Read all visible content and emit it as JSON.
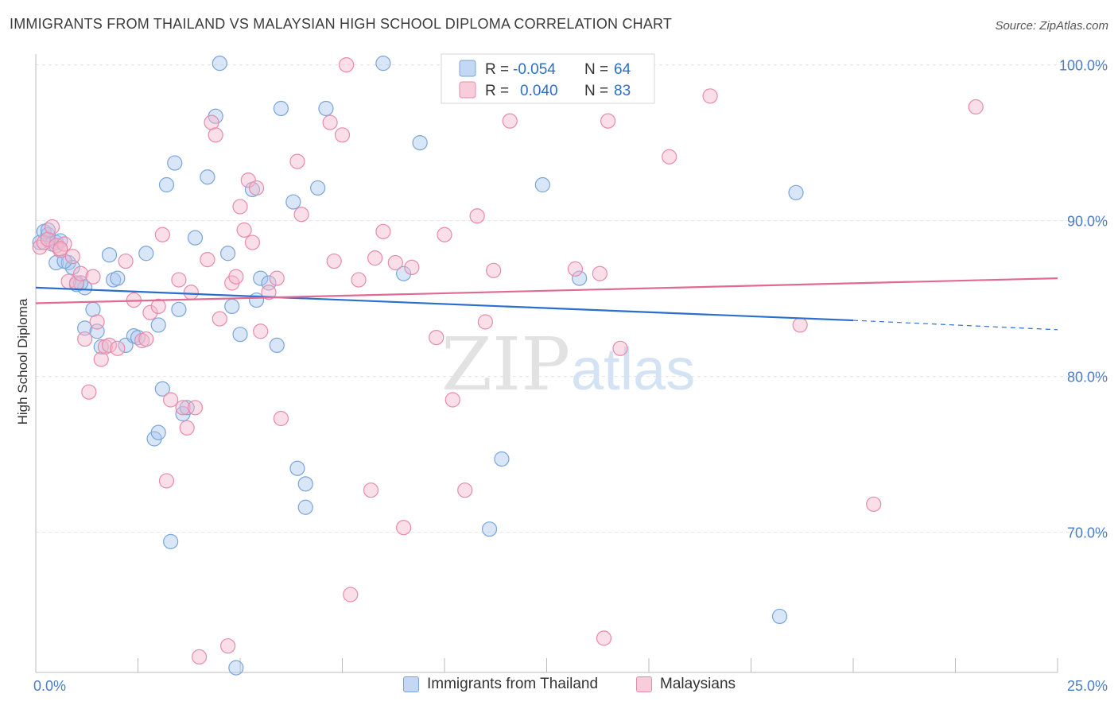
{
  "header": {
    "title": "IMMIGRANTS FROM THAILAND VS MALAYSIAN HIGH SCHOOL DIPLOMA CORRELATION CHART",
    "source": "Source: ZipAtlas.com"
  },
  "watermark": {
    "part1": "ZIP",
    "part2": "atlas"
  },
  "colors": {
    "blue_fill": "#a8c8f0",
    "blue_stroke": "#7aa5d9",
    "blue_line": "#2a6fcc",
    "pink_fill": "#f5b8cc",
    "pink_stroke": "#e88aab",
    "pink_line": "#e06a94",
    "axis_label": "#4a7cc7",
    "grid": "#e2e2e2"
  },
  "stats_legend": [
    {
      "r_label": "R =",
      "r_value": "-0.054",
      "n_label": "N =",
      "n_value": "64"
    },
    {
      "r_label": "R =",
      "r_value": "0.040",
      "n_label": "N =",
      "n_value": "83"
    }
  ],
  "legend": [
    {
      "label": "Immigrants from Thailand"
    },
    {
      "label": "Malaysians"
    }
  ],
  "chart_data": {
    "type": "scatter",
    "ylabel": "High School Diploma",
    "xlim": [
      0,
      25
    ],
    "ylim": [
      61.0,
      101.0
    ],
    "x_ticks": [
      "0.0%",
      "25.0%"
    ],
    "y_ticks": [
      {
        "value": 100,
        "label": "100.0%"
      },
      {
        "value": 90,
        "label": "90.0%"
      },
      {
        "value": 80,
        "label": "80.0%"
      },
      {
        "value": 70,
        "label": "70.0%"
      }
    ],
    "series": [
      {
        "name": "Immigrants from Thailand",
        "trend": {
          "x0": 0,
          "y0": 85.7,
          "x1": 20.0,
          "y1": 83.6,
          "dash_to_x": 25,
          "dash_to_y": 83.0
        },
        "points": [
          [
            0.1,
            88.6
          ],
          [
            0.2,
            89.3
          ],
          [
            0.3,
            89.1
          ],
          [
            0.4,
            88.5
          ],
          [
            0.5,
            88.6
          ],
          [
            0.6,
            88.7
          ],
          [
            0.5,
            87.3
          ],
          [
            0.8,
            87.3
          ],
          [
            0.9,
            87.0
          ],
          [
            1.0,
            85.9
          ],
          [
            1.2,
            85.7
          ],
          [
            1.4,
            84.3
          ],
          [
            1.2,
            83.1
          ],
          [
            1.5,
            82.9
          ],
          [
            1.6,
            81.9
          ],
          [
            1.8,
            87.8
          ],
          [
            1.9,
            86.2
          ],
          [
            2.0,
            86.3
          ],
          [
            2.2,
            82.0
          ],
          [
            2.4,
            82.6
          ],
          [
            2.5,
            82.5
          ],
          [
            2.7,
            87.9
          ],
          [
            2.9,
            76.0
          ],
          [
            3.0,
            76.4
          ],
          [
            3.0,
            83.3
          ],
          [
            3.1,
            79.2
          ],
          [
            3.2,
            92.3
          ],
          [
            3.4,
            93.7
          ],
          [
            3.5,
            84.3
          ],
          [
            3.6,
            77.6
          ],
          [
            3.7,
            78.0
          ],
          [
            3.9,
            88.9
          ],
          [
            4.2,
            92.8
          ],
          [
            4.4,
            96.7
          ],
          [
            4.5,
            100.1
          ],
          [
            4.7,
            87.9
          ],
          [
            4.8,
            84.5
          ],
          [
            4.9,
            61.3
          ],
          [
            5.0,
            82.7
          ],
          [
            5.3,
            92.0
          ],
          [
            5.4,
            84.9
          ],
          [
            5.5,
            86.3
          ],
          [
            5.7,
            86.0
          ],
          [
            5.9,
            82.0
          ],
          [
            6.0,
            97.2
          ],
          [
            6.3,
            91.2
          ],
          [
            6.4,
            74.1
          ],
          [
            6.6,
            73.1
          ],
          [
            6.6,
            71.6
          ],
          [
            6.9,
            92.1
          ],
          [
            7.1,
            97.2
          ],
          [
            8.5,
            100.1
          ],
          [
            9.0,
            86.6
          ],
          [
            9.4,
            95.0
          ],
          [
            3.3,
            69.4
          ],
          [
            11.1,
            70.2
          ],
          [
            11.4,
            74.7
          ],
          [
            12.4,
            92.3
          ],
          [
            13.3,
            86.3
          ],
          [
            18.2,
            64.6
          ],
          [
            18.6,
            91.8
          ],
          [
            0.3,
            89.4
          ],
          [
            0.7,
            87.4
          ],
          [
            1.1,
            86.0
          ]
        ]
      },
      {
        "name": "Malaysians",
        "trend": {
          "x0": 0,
          "y0": 84.7,
          "x1": 25,
          "y1": 86.3
        },
        "points": [
          [
            0.1,
            88.3
          ],
          [
            0.2,
            88.6
          ],
          [
            0.3,
            88.8
          ],
          [
            0.4,
            89.6
          ],
          [
            0.5,
            88.4
          ],
          [
            0.6,
            88.1
          ],
          [
            0.7,
            88.5
          ],
          [
            0.8,
            86.1
          ],
          [
            0.9,
            87.7
          ],
          [
            1.0,
            86.0
          ],
          [
            1.1,
            86.6
          ],
          [
            1.2,
            82.4
          ],
          [
            1.3,
            79.0
          ],
          [
            1.4,
            86.4
          ],
          [
            1.5,
            83.5
          ],
          [
            1.6,
            81.1
          ],
          [
            1.7,
            81.9
          ],
          [
            1.8,
            82.0
          ],
          [
            2.0,
            81.8
          ],
          [
            2.2,
            87.4
          ],
          [
            2.4,
            84.9
          ],
          [
            2.6,
            82.3
          ],
          [
            2.7,
            82.4
          ],
          [
            2.8,
            84.1
          ],
          [
            3.0,
            84.5
          ],
          [
            3.1,
            89.1
          ],
          [
            3.2,
            73.3
          ],
          [
            3.3,
            78.5
          ],
          [
            3.5,
            86.2
          ],
          [
            3.6,
            78.0
          ],
          [
            3.7,
            76.7
          ],
          [
            3.8,
            85.4
          ],
          [
            3.9,
            78.0
          ],
          [
            4.0,
            62.0
          ],
          [
            4.2,
            87.5
          ],
          [
            4.3,
            96.3
          ],
          [
            4.4,
            95.5
          ],
          [
            4.5,
            83.7
          ],
          [
            4.7,
            62.7
          ],
          [
            4.8,
            86.0
          ],
          [
            4.9,
            86.4
          ],
          [
            5.0,
            90.9
          ],
          [
            5.1,
            89.4
          ],
          [
            5.2,
            92.6
          ],
          [
            5.3,
            88.6
          ],
          [
            5.4,
            92.1
          ],
          [
            5.5,
            82.9
          ],
          [
            5.7,
            85.4
          ],
          [
            5.9,
            86.3
          ],
          [
            6.0,
            77.3
          ],
          [
            6.4,
            93.8
          ],
          [
            6.5,
            90.4
          ],
          [
            7.2,
            96.3
          ],
          [
            7.3,
            87.4
          ],
          [
            7.5,
            95.5
          ],
          [
            7.6,
            100.0
          ],
          [
            7.7,
            66.0
          ],
          [
            7.9,
            86.2
          ],
          [
            8.2,
            72.7
          ],
          [
            8.3,
            87.6
          ],
          [
            8.5,
            89.3
          ],
          [
            8.8,
            87.3
          ],
          [
            9.0,
            70.3
          ],
          [
            9.2,
            87.0
          ],
          [
            9.8,
            82.5
          ],
          [
            10.0,
            89.1
          ],
          [
            10.2,
            78.5
          ],
          [
            10.5,
            72.7
          ],
          [
            10.8,
            90.3
          ],
          [
            11.0,
            83.5
          ],
          [
            11.2,
            86.8
          ],
          [
            11.6,
            96.4
          ],
          [
            13.2,
            86.9
          ],
          [
            13.8,
            86.6
          ],
          [
            13.9,
            63.2
          ],
          [
            14.0,
            96.4
          ],
          [
            14.3,
            81.8
          ],
          [
            15.5,
            94.1
          ],
          [
            16.5,
            98.0
          ],
          [
            18.7,
            83.3
          ],
          [
            20.5,
            71.8
          ],
          [
            23.0,
            97.3
          ],
          [
            0.6,
            88.2
          ]
        ]
      }
    ]
  }
}
